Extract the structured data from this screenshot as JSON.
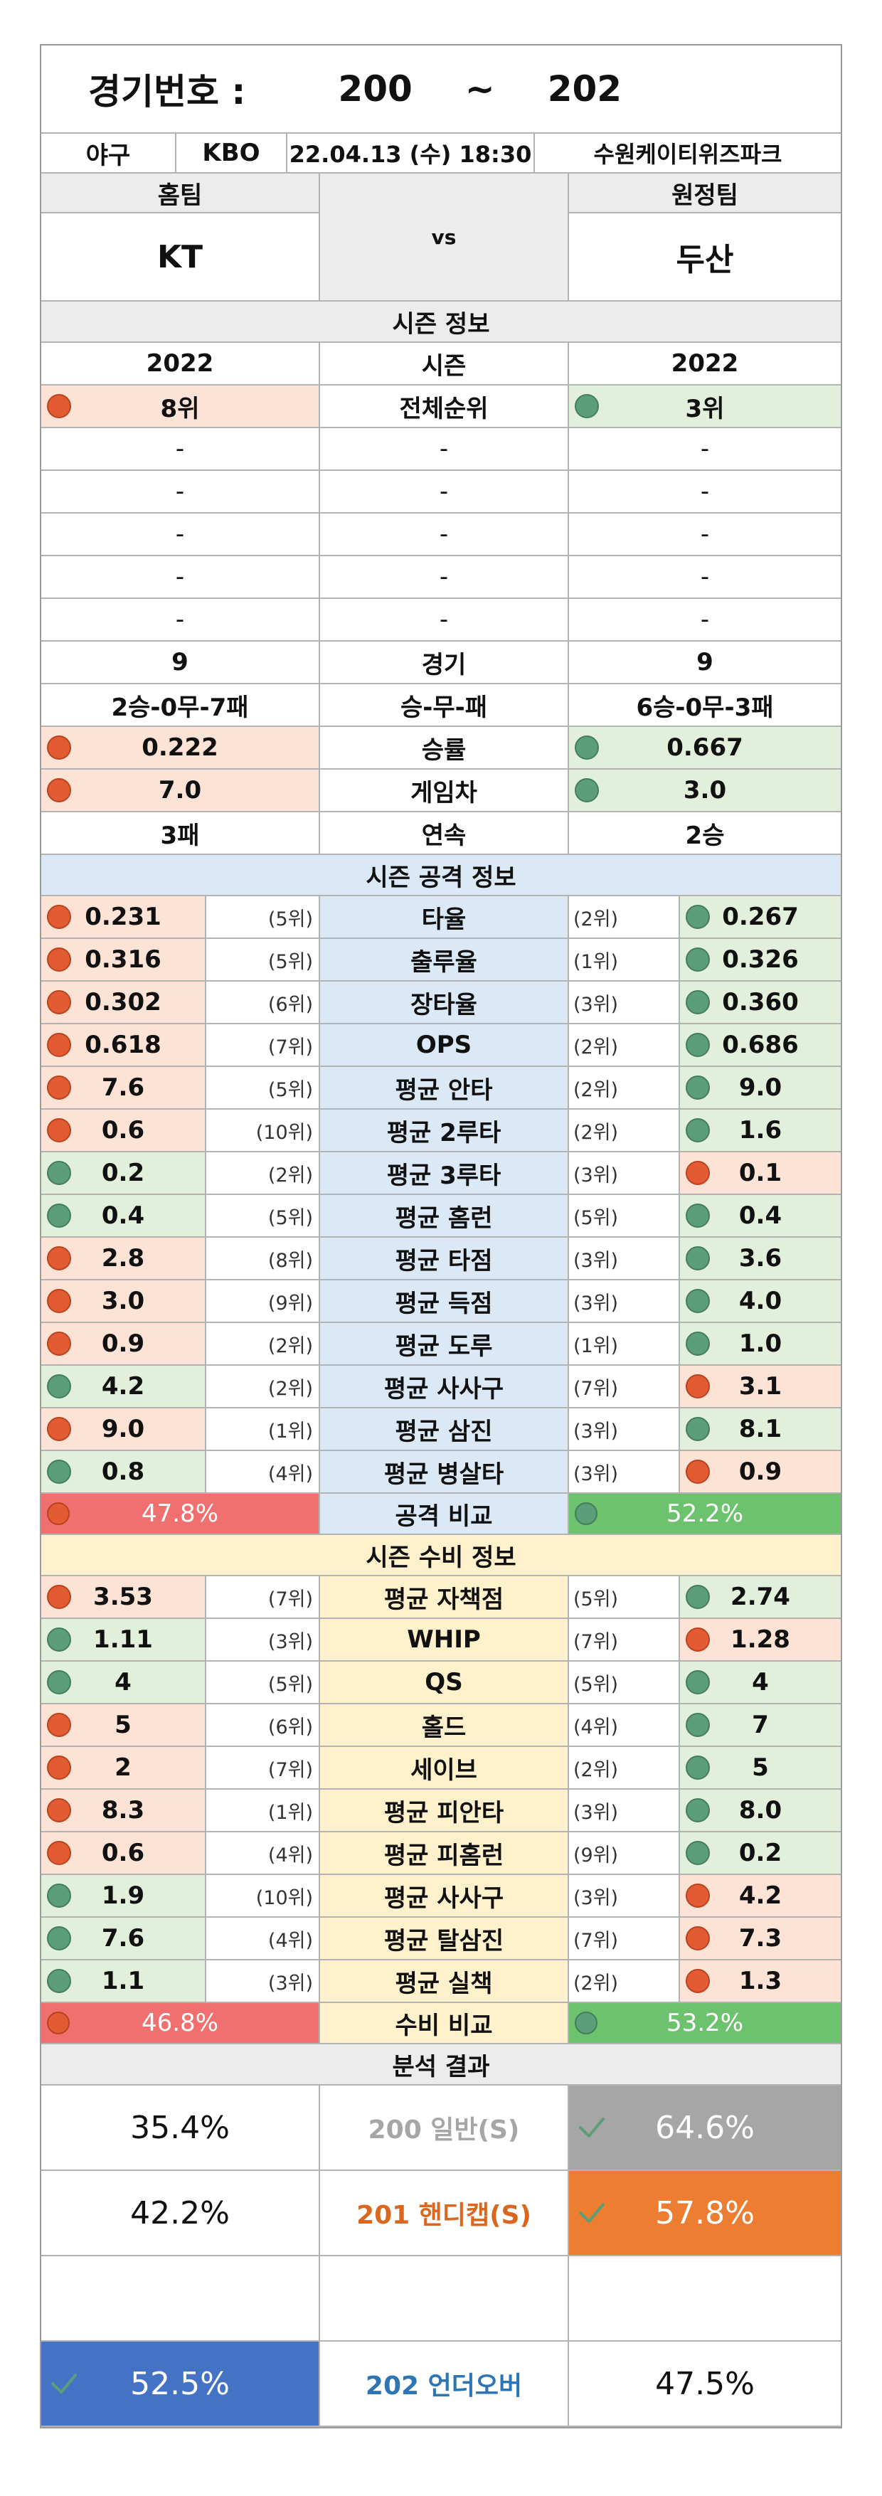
{
  "header": {
    "label": "경기번호 :",
    "range_start": "200",
    "range_tilde": "~",
    "range_end": "202"
  },
  "match": {
    "sport": "야구",
    "league": "KBO",
    "datetime": "22.04.13 (수) 18:30",
    "stadium": "수원케이티위즈파크",
    "home_label": "홈팀",
    "away_label": "원정팀",
    "home_team": "KT",
    "vs": "vs",
    "away_team": "두산"
  },
  "season": {
    "title": "시즌 정보",
    "rows": [
      {
        "home": "2022",
        "label": "시즌",
        "away": "2022",
        "home_dot": "",
        "away_dot": "",
        "home_bg": "",
        "away_bg": ""
      },
      {
        "home": "8위",
        "label": "전체순위",
        "away": "3위",
        "home_dot": "red",
        "away_dot": "green",
        "home_bg": "red",
        "away_bg": "green"
      },
      {
        "home": "-",
        "label": "-",
        "away": "-",
        "home_dot": "",
        "away_dot": "",
        "home_bg": "",
        "away_bg": ""
      },
      {
        "home": "-",
        "label": "-",
        "away": "-",
        "home_dot": "",
        "away_dot": "",
        "home_bg": "",
        "away_bg": ""
      },
      {
        "home": "-",
        "label": "-",
        "away": "-",
        "home_dot": "",
        "away_dot": "",
        "home_bg": "",
        "away_bg": ""
      },
      {
        "home": "-",
        "label": "-",
        "away": "-",
        "home_dot": "",
        "away_dot": "",
        "home_bg": "",
        "away_bg": ""
      },
      {
        "home": "-",
        "label": "-",
        "away": "-",
        "home_dot": "",
        "away_dot": "",
        "home_bg": "",
        "away_bg": ""
      },
      {
        "home": "9",
        "label": "경기",
        "away": "9",
        "home_dot": "",
        "away_dot": "",
        "home_bg": "",
        "away_bg": ""
      },
      {
        "home": "2승-0무-7패",
        "label": "승-무-패",
        "away": "6승-0무-3패",
        "home_dot": "",
        "away_dot": "",
        "home_bg": "",
        "away_bg": ""
      },
      {
        "home": "0.222",
        "label": "승률",
        "away": "0.667",
        "home_dot": "red",
        "away_dot": "green",
        "home_bg": "red",
        "away_bg": "green"
      },
      {
        "home": "7.0",
        "label": "게임차",
        "away": "3.0",
        "home_dot": "red",
        "away_dot": "green",
        "home_bg": "red",
        "away_bg": "green"
      },
      {
        "home": "3패",
        "label": "연속",
        "away": "2승",
        "home_dot": "",
        "away_dot": "",
        "home_bg": "",
        "away_bg": ""
      }
    ]
  },
  "offense": {
    "title": "시즌 공격 정보",
    "rows": [
      {
        "home": "0.231",
        "home_rank": "(5위)",
        "label": "타율",
        "away_rank": "(2위)",
        "away": "0.267",
        "home_color": "red",
        "away_color": "green"
      },
      {
        "home": "0.316",
        "home_rank": "(5위)",
        "label": "출루율",
        "away_rank": "(1위)",
        "away": "0.326",
        "home_color": "red",
        "away_color": "green"
      },
      {
        "home": "0.302",
        "home_rank": "(6위)",
        "label": "장타율",
        "away_rank": "(3위)",
        "away": "0.360",
        "home_color": "red",
        "away_color": "green"
      },
      {
        "home": "0.618",
        "home_rank": "(7위)",
        "label": "OPS",
        "away_rank": "(2위)",
        "away": "0.686",
        "home_color": "red",
        "away_color": "green"
      },
      {
        "home": "7.6",
        "home_rank": "(5위)",
        "label": "평균 안타",
        "away_rank": "(2위)",
        "away": "9.0",
        "home_color": "red",
        "away_color": "green"
      },
      {
        "home": "0.6",
        "home_rank": "(10위)",
        "label": "평균 2루타",
        "away_rank": "(2위)",
        "away": "1.6",
        "home_color": "red",
        "away_color": "green"
      },
      {
        "home": "0.2",
        "home_rank": "(2위)",
        "label": "평균 3루타",
        "away_rank": "(3위)",
        "away": "0.1",
        "home_color": "green",
        "away_color": "red"
      },
      {
        "home": "0.4",
        "home_rank": "(5위)",
        "label": "평균 홈런",
        "away_rank": "(5위)",
        "away": "0.4",
        "home_color": "green",
        "away_color": "green"
      },
      {
        "home": "2.8",
        "home_rank": "(8위)",
        "label": "평균 타점",
        "away_rank": "(3위)",
        "away": "3.6",
        "home_color": "red",
        "away_color": "green"
      },
      {
        "home": "3.0",
        "home_rank": "(9위)",
        "label": "평균 득점",
        "away_rank": "(3위)",
        "away": "4.0",
        "home_color": "red",
        "away_color": "green"
      },
      {
        "home": "0.9",
        "home_rank": "(2위)",
        "label": "평균 도루",
        "away_rank": "(1위)",
        "away": "1.0",
        "home_color": "red",
        "away_color": "green"
      },
      {
        "home": "4.2",
        "home_rank": "(2위)",
        "label": "평균 사사구",
        "away_rank": "(7위)",
        "away": "3.1",
        "home_color": "green",
        "away_color": "red"
      },
      {
        "home": "9.0",
        "home_rank": "(1위)",
        "label": "평균 삼진",
        "away_rank": "(3위)",
        "away": "8.1",
        "home_color": "red",
        "away_color": "green"
      },
      {
        "home": "0.8",
        "home_rank": "(4위)",
        "label": "평균 병살타",
        "away_rank": "(3위)",
        "away": "0.9",
        "home_color": "green",
        "away_color": "red"
      }
    ],
    "compare": {
      "home": "47.8%",
      "label": "공격 비교",
      "away": "52.2%"
    }
  },
  "defense": {
    "title": "시즌 수비 정보",
    "rows": [
      {
        "home": "3.53",
        "home_rank": "(7위)",
        "label": "평균 자책점",
        "away_rank": "(5위)",
        "away": "2.74",
        "home_color": "red",
        "away_color": "green"
      },
      {
        "home": "1.11",
        "home_rank": "(3위)",
        "label": "WHIP",
        "away_rank": "(7위)",
        "away": "1.28",
        "home_color": "green",
        "away_color": "red"
      },
      {
        "home": "4",
        "home_rank": "(5위)",
        "label": "QS",
        "away_rank": "(5위)",
        "away": "4",
        "home_color": "green",
        "away_color": "green"
      },
      {
        "home": "5",
        "home_rank": "(6위)",
        "label": "홀드",
        "away_rank": "(4위)",
        "away": "7",
        "home_color": "red",
        "away_color": "green"
      },
      {
        "home": "2",
        "home_rank": "(7위)",
        "label": "세이브",
        "away_rank": "(2위)",
        "away": "5",
        "home_color": "red",
        "away_color": "green"
      },
      {
        "home": "8.3",
        "home_rank": "(1위)",
        "label": "평균 피안타",
        "away_rank": "(3위)",
        "away": "8.0",
        "home_color": "red",
        "away_color": "green"
      },
      {
        "home": "0.6",
        "home_rank": "(4위)",
        "label": "평균 피홈런",
        "away_rank": "(9위)",
        "away": "0.2",
        "home_color": "red",
        "away_color": "green"
      },
      {
        "home": "1.9",
        "home_rank": "(10위)",
        "label": "평균 사사구",
        "away_rank": "(3위)",
        "away": "4.2",
        "home_color": "green",
        "away_color": "red"
      },
      {
        "home": "7.6",
        "home_rank": "(4위)",
        "label": "평균 탈삼진",
        "away_rank": "(7위)",
        "away": "7.3",
        "home_color": "green",
        "away_color": "red"
      },
      {
        "home": "1.1",
        "home_rank": "(3위)",
        "label": "평균 실책",
        "away_rank": "(2위)",
        "away": "1.3",
        "home_color": "green",
        "away_color": "red"
      }
    ],
    "compare": {
      "home": "46.8%",
      "label": "수비 비교",
      "away": "53.2%"
    }
  },
  "analysis": {
    "title": "분석 결과",
    "rows": [
      {
        "home": "35.4%",
        "label": "200 일반(S)",
        "away": "64.6%",
        "pick": "away",
        "label_color": "#a6a6a6",
        "pick_bg": "#a6a6a6"
      },
      {
        "home": "42.2%",
        "label": "201 핸디캡(S)",
        "away": "57.8%",
        "pick": "away",
        "label_color": "#d9671f",
        "pick_bg": "#ed7d31"
      },
      {
        "home": "",
        "label": "",
        "away": "",
        "pick": "",
        "label_color": "#111111",
        "pick_bg": ""
      },
      {
        "home": "52.5%",
        "label": "202 언더오버",
        "away": "47.5%",
        "pick": "home",
        "label_color": "#2e75b6",
        "pick_bg": "#4472c4"
      }
    ]
  }
}
